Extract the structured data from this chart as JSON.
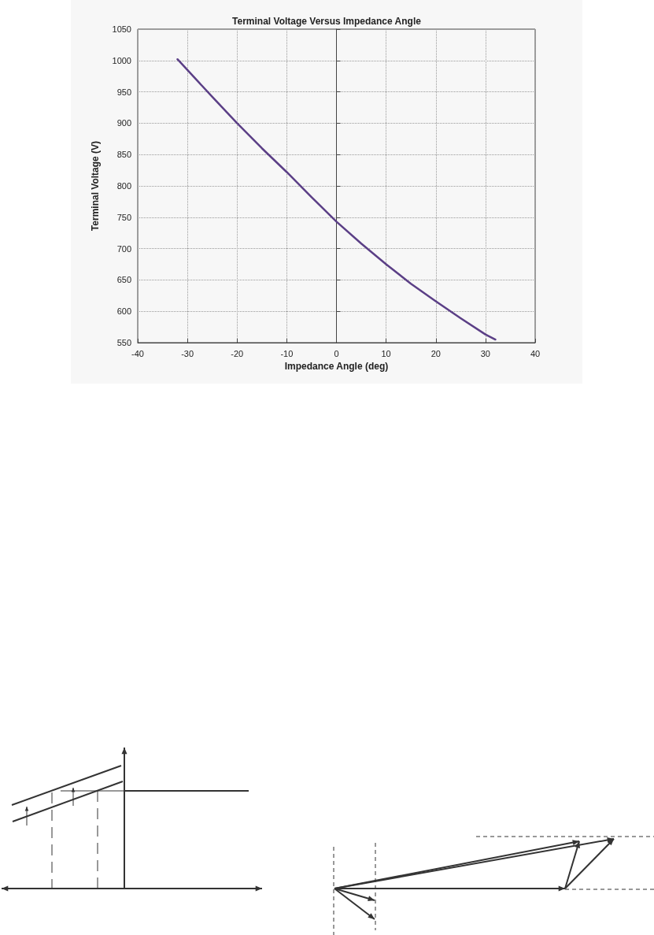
{
  "chart_data": {
    "type": "line",
    "title": "Terminal Voltage Versus Impedance Angle",
    "xlabel": "Impedance Angle (deg)",
    "ylabel": "Terminal Voltage (V)",
    "x": [
      -32,
      -25,
      -20,
      -15,
      -10,
      -5,
      0,
      5,
      10,
      15,
      20,
      25,
      30,
      32
    ],
    "series": [
      {
        "color": "#5b3f86",
        "values": [
          1002,
          942,
          900,
          860,
          822,
          782,
          743,
          708,
          675,
          644,
          616,
          589,
          563,
          555
        ]
      }
    ],
    "xlim": [
      -40,
      40
    ],
    "ylim": [
      550,
      1050
    ],
    "xticks": [
      -40,
      -30,
      -20,
      -10,
      0,
      10,
      20,
      30,
      40
    ],
    "yticks": [
      550,
      600,
      650,
      700,
      750,
      800,
      850,
      900,
      950,
      1000,
      1050
    ],
    "grid": true,
    "marker": "none",
    "line_style": "solid"
  }
}
